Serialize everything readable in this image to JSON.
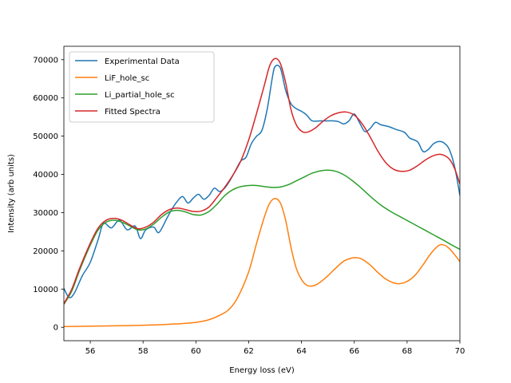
{
  "chart_data": {
    "type": "line",
    "title": "",
    "xlabel": "Energy loss (eV)",
    "ylabel": "Intensity (arb units)",
    "xlim": [
      55,
      70
    ],
    "ylim": [
      -3500,
      73500
    ],
    "xticks": [
      56,
      58,
      60,
      62,
      64,
      66,
      68,
      70
    ],
    "yticks": [
      0,
      10000,
      20000,
      30000,
      40000,
      50000,
      60000,
      70000
    ],
    "grid": false,
    "legend_position": "upper-left",
    "series": [
      {
        "name": "Experimental Data",
        "color": "#1f77b4",
        "points": [
          [
            55.0,
            10200
          ],
          [
            55.2,
            7800
          ],
          [
            55.4,
            9000
          ],
          [
            55.7,
            13500
          ],
          [
            56.0,
            17000
          ],
          [
            56.3,
            23000
          ],
          [
            56.5,
            27200
          ],
          [
            56.8,
            26000
          ],
          [
            57.1,
            28000
          ],
          [
            57.4,
            25500
          ],
          [
            57.7,
            26500
          ],
          [
            57.9,
            23200
          ],
          [
            58.1,
            25500
          ],
          [
            58.4,
            26200
          ],
          [
            58.6,
            24800
          ],
          [
            58.9,
            28500
          ],
          [
            59.1,
            31000
          ],
          [
            59.3,
            33000
          ],
          [
            59.5,
            34200
          ],
          [
            59.7,
            32500
          ],
          [
            59.9,
            33800
          ],
          [
            60.1,
            34800
          ],
          [
            60.3,
            33500
          ],
          [
            60.5,
            34500
          ],
          [
            60.7,
            36400
          ],
          [
            60.9,
            35500
          ],
          [
            61.1,
            36500
          ],
          [
            61.3,
            38500
          ],
          [
            61.5,
            41000
          ],
          [
            61.7,
            43500
          ],
          [
            61.9,
            44500
          ],
          [
            62.1,
            48000
          ],
          [
            62.3,
            50000
          ],
          [
            62.5,
            51500
          ],
          [
            62.7,
            57000
          ],
          [
            62.9,
            65500
          ],
          [
            63.0,
            68200
          ],
          [
            63.2,
            67800
          ],
          [
            63.4,
            62000
          ],
          [
            63.6,
            58500
          ],
          [
            63.8,
            57200
          ],
          [
            64.0,
            56500
          ],
          [
            64.2,
            55500
          ],
          [
            64.4,
            54000
          ],
          [
            64.7,
            54000
          ],
          [
            65.0,
            54000
          ],
          [
            65.2,
            54000
          ],
          [
            65.4,
            53800
          ],
          [
            65.6,
            53200
          ],
          [
            65.8,
            54000
          ],
          [
            66.0,
            55800
          ],
          [
            66.2,
            53500
          ],
          [
            66.4,
            51200
          ],
          [
            66.6,
            52000
          ],
          [
            66.8,
            53600
          ],
          [
            67.0,
            53000
          ],
          [
            67.3,
            52500
          ],
          [
            67.6,
            51700
          ],
          [
            67.9,
            51000
          ],
          [
            68.1,
            49500
          ],
          [
            68.4,
            48500
          ],
          [
            68.6,
            46000
          ],
          [
            68.8,
            46500
          ],
          [
            69.0,
            48000
          ],
          [
            69.2,
            48600
          ],
          [
            69.4,
            48200
          ],
          [
            69.6,
            46500
          ],
          [
            69.8,
            42000
          ],
          [
            70.0,
            34500
          ]
        ]
      },
      {
        "name": "LiF_hole_sc",
        "color": "#ff7f0e",
        "points": [
          [
            55.0,
            200
          ],
          [
            56.0,
            300
          ],
          [
            57.0,
            400
          ],
          [
            58.0,
            550
          ],
          [
            58.5,
            650
          ],
          [
            59.0,
            800
          ],
          [
            59.5,
            1000
          ],
          [
            60.0,
            1300
          ],
          [
            60.5,
            2000
          ],
          [
            61.0,
            3500
          ],
          [
            61.3,
            5000
          ],
          [
            61.6,
            8000
          ],
          [
            62.0,
            14500
          ],
          [
            62.3,
            22000
          ],
          [
            62.6,
            29000
          ],
          [
            62.8,
            32500
          ],
          [
            63.0,
            33700
          ],
          [
            63.2,
            32500
          ],
          [
            63.4,
            28000
          ],
          [
            63.6,
            21000
          ],
          [
            63.8,
            15500
          ],
          [
            64.0,
            12500
          ],
          [
            64.2,
            11000
          ],
          [
            64.4,
            10800
          ],
          [
            64.6,
            11300
          ],
          [
            64.8,
            12300
          ],
          [
            65.0,
            13500
          ],
          [
            65.3,
            15500
          ],
          [
            65.6,
            17300
          ],
          [
            65.9,
            18100
          ],
          [
            66.1,
            18200
          ],
          [
            66.3,
            17800
          ],
          [
            66.6,
            16300
          ],
          [
            66.9,
            14300
          ],
          [
            67.2,
            12600
          ],
          [
            67.5,
            11600
          ],
          [
            67.7,
            11400
          ],
          [
            68.0,
            12000
          ],
          [
            68.3,
            13600
          ],
          [
            68.6,
            16300
          ],
          [
            68.9,
            19300
          ],
          [
            69.2,
            21400
          ],
          [
            69.4,
            21500
          ],
          [
            69.6,
            20600
          ],
          [
            69.8,
            19000
          ],
          [
            70.0,
            17200
          ]
        ]
      },
      {
        "name": "Li_partial_hole_sc",
        "color": "#2ca02c",
        "points": [
          [
            55.0,
            6000
          ],
          [
            55.3,
            9500
          ],
          [
            55.6,
            15000
          ],
          [
            56.0,
            21500
          ],
          [
            56.3,
            25500
          ],
          [
            56.6,
            27500
          ],
          [
            56.9,
            28000
          ],
          [
            57.2,
            27500
          ],
          [
            57.5,
            26500
          ],
          [
            57.8,
            25500
          ],
          [
            58.1,
            25700
          ],
          [
            58.4,
            27000
          ],
          [
            58.7,
            28800
          ],
          [
            59.0,
            30200
          ],
          [
            59.3,
            30600
          ],
          [
            59.6,
            30200
          ],
          [
            59.9,
            29500
          ],
          [
            60.2,
            29400
          ],
          [
            60.5,
            30300
          ],
          [
            60.8,
            32200
          ],
          [
            61.1,
            34500
          ],
          [
            61.4,
            36000
          ],
          [
            61.7,
            36800
          ],
          [
            62.0,
            37100
          ],
          [
            62.3,
            37100
          ],
          [
            62.6,
            36800
          ],
          [
            62.9,
            36600
          ],
          [
            63.2,
            36700
          ],
          [
            63.5,
            37300
          ],
          [
            63.8,
            38300
          ],
          [
            64.1,
            39300
          ],
          [
            64.4,
            40300
          ],
          [
            64.7,
            40900
          ],
          [
            65.0,
            41100
          ],
          [
            65.3,
            40800
          ],
          [
            65.6,
            39900
          ],
          [
            65.9,
            38500
          ],
          [
            66.2,
            36800
          ],
          [
            66.6,
            34300
          ],
          [
            67.0,
            32000
          ],
          [
            67.4,
            30200
          ],
          [
            67.8,
            28700
          ],
          [
            68.2,
            27200
          ],
          [
            68.6,
            25700
          ],
          [
            69.0,
            24200
          ],
          [
            69.4,
            22700
          ],
          [
            69.7,
            21500
          ],
          [
            70.0,
            20400
          ]
        ]
      },
      {
        "name": "Fitted Spectra",
        "color": "#d62728",
        "points": [
          [
            55.0,
            6200
          ],
          [
            55.3,
            10000
          ],
          [
            55.6,
            15500
          ],
          [
            56.0,
            22000
          ],
          [
            56.3,
            26000
          ],
          [
            56.6,
            28000
          ],
          [
            56.9,
            28500
          ],
          [
            57.2,
            28000
          ],
          [
            57.5,
            26800
          ],
          [
            57.8,
            25800
          ],
          [
            58.1,
            26200
          ],
          [
            58.4,
            27500
          ],
          [
            58.7,
            29500
          ],
          [
            59.0,
            30800
          ],
          [
            59.3,
            31200
          ],
          [
            59.6,
            30800
          ],
          [
            59.9,
            30300
          ],
          [
            60.2,
            30400
          ],
          [
            60.5,
            31500
          ],
          [
            60.8,
            34000
          ],
          [
            61.1,
            36700
          ],
          [
            61.4,
            39800
          ],
          [
            61.7,
            43500
          ],
          [
            62.0,
            49000
          ],
          [
            62.3,
            56000
          ],
          [
            62.6,
            63500
          ],
          [
            62.8,
            68500
          ],
          [
            63.0,
            70300
          ],
          [
            63.2,
            69000
          ],
          [
            63.4,
            64000
          ],
          [
            63.6,
            57000
          ],
          [
            63.8,
            53000
          ],
          [
            64.0,
            51300
          ],
          [
            64.2,
            51000
          ],
          [
            64.5,
            52000
          ],
          [
            64.8,
            53800
          ],
          [
            65.1,
            55300
          ],
          [
            65.4,
            56100
          ],
          [
            65.7,
            56300
          ],
          [
            66.0,
            55500
          ],
          [
            66.3,
            53200
          ],
          [
            66.6,
            49800
          ],
          [
            66.9,
            46000
          ],
          [
            67.2,
            43000
          ],
          [
            67.5,
            41300
          ],
          [
            67.8,
            40800
          ],
          [
            68.1,
            41100
          ],
          [
            68.4,
            42300
          ],
          [
            68.7,
            43800
          ],
          [
            69.0,
            44900
          ],
          [
            69.3,
            45200
          ],
          [
            69.6,
            44000
          ],
          [
            69.8,
            41500
          ],
          [
            70.0,
            37500
          ]
        ]
      }
    ]
  }
}
